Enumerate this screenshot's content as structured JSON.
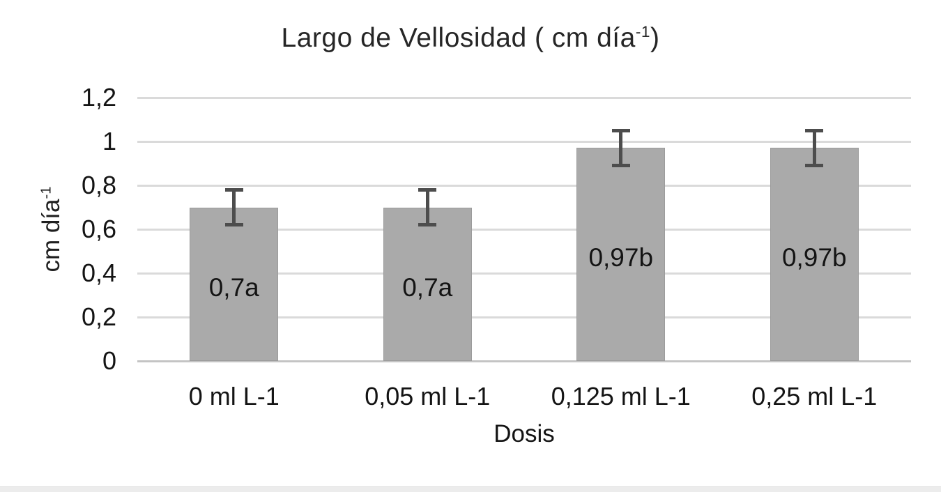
{
  "chart_data": {
    "type": "bar",
    "title": {
      "prefix": "Largo de Vellosidad ( cm día",
      "superscript": "-1",
      "suffix": ")"
    },
    "ylabel": {
      "prefix": "cm día",
      "superscript": "-1"
    },
    "xlabel": "Dosis",
    "categories": [
      "0 ml L-1",
      "0,05 ml L-1",
      "0,125 ml L-1",
      "0,25 ml L-1"
    ],
    "values": [
      0.7,
      0.7,
      0.97,
      0.97
    ],
    "bar_labels": [
      "0,7a",
      "0,7a",
      "0,97b",
      "0,97b"
    ],
    "error_bars": [
      0.08,
      0.08,
      0.08,
      0.08
    ],
    "y_ticks": [
      {
        "value": 0,
        "label": "0"
      },
      {
        "value": 0.2,
        "label": "0,2"
      },
      {
        "value": 0.4,
        "label": "0,4"
      },
      {
        "value": 0.6,
        "label": "0,6"
      },
      {
        "value": 0.8,
        "label": "0,8"
      },
      {
        "value": 1,
        "label": "1"
      },
      {
        "value": 1.2,
        "label": "1,2"
      }
    ],
    "ylim": [
      0,
      1.2
    ],
    "grid": true,
    "legend": "none",
    "colors": {
      "bar_fill": "#aaaaaa",
      "bar_border": "#9b9b9b",
      "error_bar": "#4d4d4d",
      "gridline": "#dadada",
      "baseline": "#c4c4c4",
      "text": "#1f1f1f"
    }
  }
}
